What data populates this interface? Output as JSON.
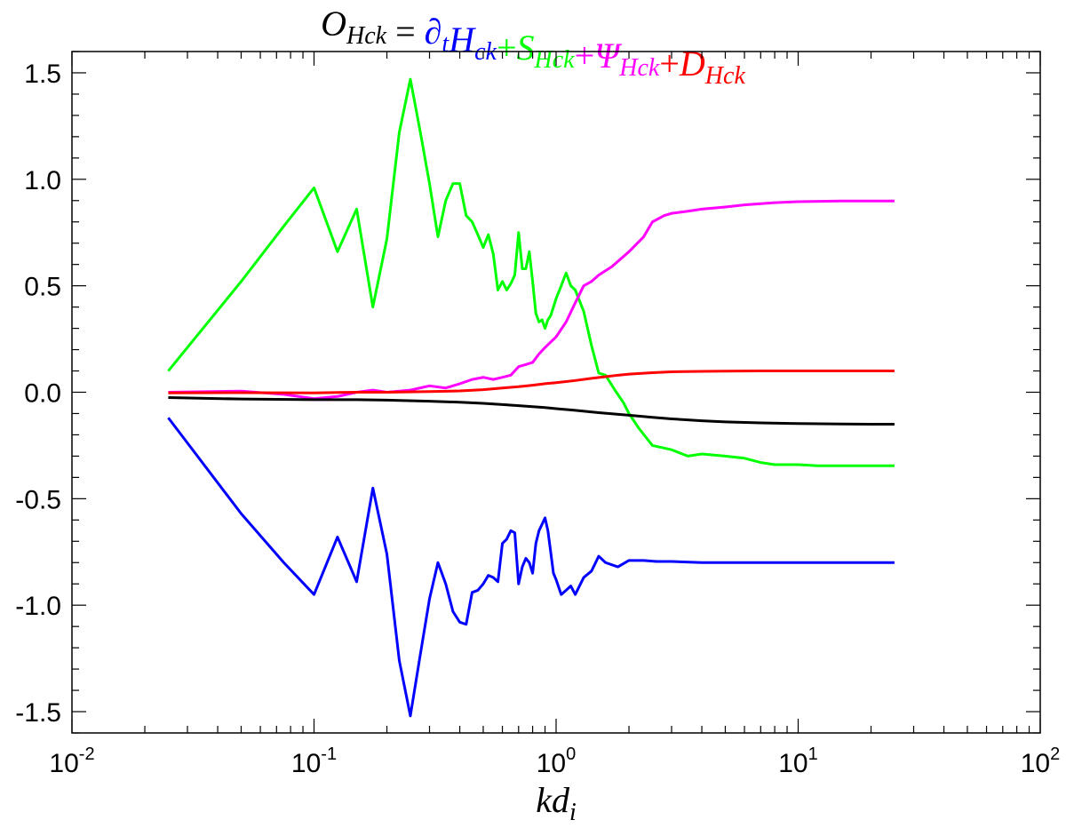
{
  "chart_data": {
    "type": "line",
    "title_parts": [
      {
        "main": "O",
        "sub": "Hck",
        "color": "#000000"
      },
      {
        "main": " = ",
        "sub": "",
        "color": "#000000"
      },
      {
        "main": "∂",
        "sub": "t",
        "color": "#0000ff"
      },
      {
        "main": "H",
        "sub": "ck",
        "color": "#0000ff"
      },
      {
        "main": "+",
        "sub": "",
        "color": "#00ff00"
      },
      {
        "main": "S",
        "sub": "Hck",
        "color": "#00ff00"
      },
      {
        "main": "+",
        "sub": "",
        "color": "#ff00ff"
      },
      {
        "main": "Ψ",
        "sub": "Hck",
        "color": "#ff00ff"
      },
      {
        "main": "+",
        "sub": "",
        "color": "#ff0000"
      },
      {
        "main": "D",
        "sub": "Hck",
        "color": "#ff0000"
      }
    ],
    "xlabel": {
      "main": "kd",
      "sub": "i"
    },
    "xscale": "log",
    "xlim": [
      0.01,
      100
    ],
    "ylim": [
      -1.6,
      1.6
    ],
    "x_ticks": [
      {
        "base": "10",
        "exp": "-2"
      },
      {
        "base": "10",
        "exp": "-1"
      },
      {
        "base": "10",
        "exp": "0"
      },
      {
        "base": "10",
        "exp": "1"
      },
      {
        "base": "10",
        "exp": "2"
      }
    ],
    "y_ticks": [
      "-1.5",
      "-1.0",
      "-0.5",
      "0.0",
      "0.5",
      "1.0",
      "1.5"
    ],
    "grid": false,
    "series": [
      {
        "color": "#00ff00",
        "points": [
          [
            0.025,
            0.1
          ],
          [
            0.05,
            0.52
          ],
          [
            0.075,
            0.78
          ],
          [
            0.1,
            0.96
          ],
          [
            0.125,
            0.66
          ],
          [
            0.15,
            0.86
          ],
          [
            0.175,
            0.4
          ],
          [
            0.2,
            0.72
          ],
          [
            0.225,
            1.22
          ],
          [
            0.25,
            1.47
          ],
          [
            0.275,
            1.22
          ],
          [
            0.3,
            0.98
          ],
          [
            0.325,
            0.73
          ],
          [
            0.35,
            0.9
          ],
          [
            0.375,
            0.98
          ],
          [
            0.4,
            0.98
          ],
          [
            0.425,
            0.83
          ],
          [
            0.45,
            0.8
          ],
          [
            0.475,
            0.74
          ],
          [
            0.5,
            0.68
          ],
          [
            0.525,
            0.74
          ],
          [
            0.55,
            0.65
          ],
          [
            0.575,
            0.48
          ],
          [
            0.6,
            0.52
          ],
          [
            0.625,
            0.48
          ],
          [
            0.65,
            0.51
          ],
          [
            0.675,
            0.55
          ],
          [
            0.7,
            0.75
          ],
          [
            0.725,
            0.58
          ],
          [
            0.75,
            0.58
          ],
          [
            0.775,
            0.66
          ],
          [
            0.8,
            0.52
          ],
          [
            0.825,
            0.37
          ],
          [
            0.85,
            0.33
          ],
          [
            0.875,
            0.34
          ],
          [
            0.9,
            0.3
          ],
          [
            0.925,
            0.34
          ],
          [
            0.95,
            0.36
          ],
          [
            0.975,
            0.4
          ],
          [
            1.0,
            0.44
          ],
          [
            1.05,
            0.5
          ],
          [
            1.1,
            0.56
          ],
          [
            1.15,
            0.5
          ],
          [
            1.2,
            0.48
          ],
          [
            1.3,
            0.38
          ],
          [
            1.4,
            0.22
          ],
          [
            1.5,
            0.09
          ],
          [
            1.6,
            0.08
          ],
          [
            1.75,
            0.01
          ],
          [
            1.9,
            -0.05
          ],
          [
            2.0,
            -0.1
          ],
          [
            2.2,
            -0.17
          ],
          [
            2.5,
            -0.25
          ],
          [
            3.0,
            -0.27
          ],
          [
            3.5,
            -0.3
          ],
          [
            4.0,
            -0.29
          ],
          [
            5.0,
            -0.3
          ],
          [
            6.0,
            -0.31
          ],
          [
            7.0,
            -0.33
          ],
          [
            8.0,
            -0.34
          ],
          [
            10.0,
            -0.34
          ],
          [
            12.0,
            -0.345
          ],
          [
            15.0,
            -0.345
          ],
          [
            20.0,
            -0.345
          ],
          [
            25.0,
            -0.345
          ]
        ]
      },
      {
        "color": "#ff00ff",
        "points": [
          [
            0.025,
            0.0
          ],
          [
            0.05,
            0.005
          ],
          [
            0.075,
            -0.01
          ],
          [
            0.1,
            -0.03
          ],
          [
            0.125,
            -0.02
          ],
          [
            0.15,
            0.0
          ],
          [
            0.175,
            0.01
          ],
          [
            0.2,
            0.0
          ],
          [
            0.25,
            0.01
          ],
          [
            0.3,
            0.03
          ],
          [
            0.35,
            0.02
          ],
          [
            0.4,
            0.04
          ],
          [
            0.45,
            0.06
          ],
          [
            0.5,
            0.07
          ],
          [
            0.55,
            0.06
          ],
          [
            0.6,
            0.07
          ],
          [
            0.65,
            0.08
          ],
          [
            0.7,
            0.12
          ],
          [
            0.75,
            0.13
          ],
          [
            0.8,
            0.14
          ],
          [
            0.85,
            0.18
          ],
          [
            0.9,
            0.21
          ],
          [
            1.0,
            0.26
          ],
          [
            1.1,
            0.33
          ],
          [
            1.2,
            0.42
          ],
          [
            1.3,
            0.5
          ],
          [
            1.4,
            0.52
          ],
          [
            1.5,
            0.55
          ],
          [
            1.7,
            0.59
          ],
          [
            2.0,
            0.66
          ],
          [
            2.3,
            0.73
          ],
          [
            2.5,
            0.8
          ],
          [
            2.8,
            0.83
          ],
          [
            3.0,
            0.84
          ],
          [
            3.5,
            0.85
          ],
          [
            4.0,
            0.86
          ],
          [
            5.0,
            0.87
          ],
          [
            6.0,
            0.88
          ],
          [
            8.0,
            0.89
          ],
          [
            10.0,
            0.895
          ],
          [
            15.0,
            0.898
          ],
          [
            20.0,
            0.898
          ],
          [
            25.0,
            0.898
          ]
        ]
      },
      {
        "color": "#ff0000",
        "points": [
          [
            0.025,
            -0.003
          ],
          [
            0.05,
            -0.002
          ],
          [
            0.1,
            -0.003
          ],
          [
            0.15,
            0.0
          ],
          [
            0.2,
            0.0
          ],
          [
            0.3,
            0.003
          ],
          [
            0.4,
            0.006
          ],
          [
            0.5,
            0.012
          ],
          [
            0.6,
            0.02
          ],
          [
            0.7,
            0.026
          ],
          [
            0.8,
            0.033
          ],
          [
            0.9,
            0.04
          ],
          [
            1.0,
            0.045
          ],
          [
            1.2,
            0.055
          ],
          [
            1.4,
            0.065
          ],
          [
            1.6,
            0.073
          ],
          [
            1.8,
            0.08
          ],
          [
            2.0,
            0.085
          ],
          [
            2.5,
            0.092
          ],
          [
            3.0,
            0.096
          ],
          [
            4.0,
            0.098
          ],
          [
            5.0,
            0.099
          ],
          [
            7.0,
            0.1
          ],
          [
            10.0,
            0.1
          ],
          [
            15.0,
            0.1
          ],
          [
            20.0,
            0.1
          ],
          [
            25.0,
            0.1
          ]
        ]
      },
      {
        "color": "#000000",
        "points": [
          [
            0.025,
            -0.025
          ],
          [
            0.05,
            -0.032
          ],
          [
            0.1,
            -0.035
          ],
          [
            0.15,
            -0.035
          ],
          [
            0.2,
            -0.037
          ],
          [
            0.3,
            -0.042
          ],
          [
            0.4,
            -0.047
          ],
          [
            0.5,
            -0.052
          ],
          [
            0.6,
            -0.058
          ],
          [
            0.7,
            -0.063
          ],
          [
            0.8,
            -0.068
          ],
          [
            0.9,
            -0.072
          ],
          [
            1.0,
            -0.077
          ],
          [
            1.2,
            -0.085
          ],
          [
            1.5,
            -0.096
          ],
          [
            2.0,
            -0.108
          ],
          [
            2.5,
            -0.118
          ],
          [
            3.0,
            -0.125
          ],
          [
            4.0,
            -0.134
          ],
          [
            5.0,
            -0.139
          ],
          [
            7.0,
            -0.144
          ],
          [
            10.0,
            -0.147
          ],
          [
            15.0,
            -0.149
          ],
          [
            20.0,
            -0.15
          ],
          [
            25.0,
            -0.15
          ]
        ]
      },
      {
        "color": "#0000ff",
        "points": [
          [
            0.025,
            -0.12
          ],
          [
            0.05,
            -0.57
          ],
          [
            0.075,
            -0.8
          ],
          [
            0.1,
            -0.95
          ],
          [
            0.125,
            -0.68
          ],
          [
            0.15,
            -0.89
          ],
          [
            0.175,
            -0.45
          ],
          [
            0.2,
            -0.76
          ],
          [
            0.225,
            -1.26
          ],
          [
            0.25,
            -1.52
          ],
          [
            0.275,
            -1.23
          ],
          [
            0.3,
            -0.97
          ],
          [
            0.325,
            -0.8
          ],
          [
            0.35,
            -0.9
          ],
          [
            0.375,
            -1.03
          ],
          [
            0.4,
            -1.08
          ],
          [
            0.425,
            -1.09
          ],
          [
            0.45,
            -0.94
          ],
          [
            0.475,
            -0.93
          ],
          [
            0.5,
            -0.9
          ],
          [
            0.525,
            -0.86
          ],
          [
            0.55,
            -0.87
          ],
          [
            0.575,
            -0.89
          ],
          [
            0.6,
            -0.71
          ],
          [
            0.625,
            -0.69
          ],
          [
            0.65,
            -0.65
          ],
          [
            0.675,
            -0.66
          ],
          [
            0.7,
            -0.9
          ],
          [
            0.725,
            -0.82
          ],
          [
            0.75,
            -0.78
          ],
          [
            0.775,
            -0.8
          ],
          [
            0.8,
            -0.85
          ],
          [
            0.825,
            -0.71
          ],
          [
            0.85,
            -0.65
          ],
          [
            0.875,
            -0.62
          ],
          [
            0.9,
            -0.59
          ],
          [
            0.925,
            -0.65
          ],
          [
            0.95,
            -0.75
          ],
          [
            0.975,
            -0.85
          ],
          [
            1.0,
            -0.88
          ],
          [
            1.05,
            -0.95
          ],
          [
            1.1,
            -0.93
          ],
          [
            1.15,
            -0.91
          ],
          [
            1.2,
            -0.95
          ],
          [
            1.3,
            -0.87
          ],
          [
            1.4,
            -0.84
          ],
          [
            1.5,
            -0.77
          ],
          [
            1.6,
            -0.8
          ],
          [
            1.8,
            -0.82
          ],
          [
            2.0,
            -0.79
          ],
          [
            2.3,
            -0.79
          ],
          [
            2.6,
            -0.795
          ],
          [
            3.0,
            -0.795
          ],
          [
            4.0,
            -0.8
          ],
          [
            5.0,
            -0.8
          ],
          [
            7.0,
            -0.8
          ],
          [
            10.0,
            -0.8
          ],
          [
            15.0,
            -0.8
          ],
          [
            20.0,
            -0.8
          ],
          [
            25.0,
            -0.8
          ]
        ]
      }
    ]
  }
}
